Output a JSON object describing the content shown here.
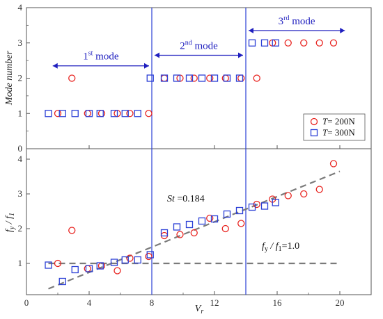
{
  "chart_data": [
    {
      "type": "scatter",
      "panel": "top",
      "xlabel": "",
      "ylabel": "Mode number",
      "xlim": [
        0,
        22
      ],
      "ylim": [
        0,
        4
      ],
      "yticks": [
        "0",
        "1",
        "2",
        "3",
        "4"
      ],
      "grid": false,
      "legend_placement": "lower-right",
      "series": [
        {
          "name": "T= 200N",
          "marker": "circle",
          "color": "#e8231f",
          "x": [
            2.0,
            2.9,
            3.9,
            4.8,
            5.8,
            6.6,
            7.8,
            8.8,
            9.8,
            10.7,
            11.7,
            12.7,
            13.7,
            14.7,
            15.7,
            16.7,
            17.7,
            18.7,
            19.6
          ],
          "y": [
            1,
            2,
            1,
            1,
            1,
            1,
            1,
            2,
            2,
            2,
            2,
            2,
            2,
            2,
            3,
            3,
            3,
            3,
            3
          ]
        },
        {
          "name": "T= 300N",
          "marker": "square",
          "color": "#2b3fd6",
          "x": [
            1.4,
            2.3,
            3.1,
            4.0,
            4.7,
            5.6,
            6.3,
            7.1,
            7.9,
            8.8,
            9.6,
            10.4,
            11.2,
            12.0,
            12.8,
            13.6,
            14.4,
            15.2,
            15.9
          ],
          "y": [
            1,
            1,
            1,
            1,
            1,
            1,
            1,
            1,
            2,
            2,
            2,
            2,
            2,
            2,
            2,
            2,
            3,
            3,
            3
          ]
        }
      ],
      "vlines": [
        8,
        14
      ],
      "annotations": [
        {
          "base": "1",
          "sup": "st",
          "tail": " mode",
          "x_from": 1.5,
          "x_to": 8.0,
          "y": 2.35
        },
        {
          "base": "2",
          "sup": "nd",
          "tail": " mode",
          "x_from": 8.0,
          "x_to": 14.0,
          "y": 2.65
        },
        {
          "base": "3",
          "sup": "rd",
          "tail": " mode",
          "x_from": 14.0,
          "x_to": 20.5,
          "y": 3.35
        }
      ]
    },
    {
      "type": "scatter",
      "panel": "bottom",
      "xlabel_base": "V",
      "xlabel_sub": "r",
      "ylabel_num": "f",
      "ylabel_num_sub": "y",
      "ylabel_den": "f",
      "ylabel_den_sub": "1",
      "xlim": [
        0,
        22
      ],
      "ylim": [
        0.1,
        4.3
      ],
      "xticks": [
        "0",
        "4",
        "8",
        "12",
        "16",
        "20"
      ],
      "xtick_values": [
        0,
        4,
        8,
        12,
        16,
        20
      ],
      "yticks": [
        "1",
        "2",
        "3",
        "4"
      ],
      "ytick_values": [
        1,
        2,
        3,
        4
      ],
      "grid": false,
      "series": [
        {
          "name": "T= 200N",
          "marker": "circle",
          "color": "#e8231f",
          "x": [
            2.0,
            2.9,
            3.9,
            4.8,
            5.8,
            6.6,
            7.8,
            8.8,
            9.8,
            10.7,
            11.7,
            12.7,
            13.7,
            14.7,
            15.7,
            16.7,
            17.7,
            18.7,
            19.6
          ],
          "y": [
            1.0,
            1.95,
            0.85,
            0.93,
            0.79,
            1.15,
            1.2,
            1.8,
            1.83,
            1.88,
            2.3,
            2.0,
            2.15,
            2.7,
            2.85,
            2.95,
            3.0,
            3.13,
            3.87
          ]
        },
        {
          "name": "T= 300N",
          "marker": "square",
          "color": "#2b3fd6",
          "x": [
            1.4,
            2.3,
            3.1,
            4.0,
            4.7,
            5.6,
            6.3,
            7.1,
            7.9,
            8.8,
            9.6,
            10.4,
            11.2,
            12.0,
            12.8,
            13.6,
            14.4,
            15.2,
            15.9
          ],
          "y": [
            0.95,
            0.48,
            0.82,
            0.85,
            0.93,
            1.03,
            1.1,
            1.1,
            1.25,
            1.88,
            2.05,
            2.12,
            2.22,
            2.28,
            2.42,
            2.52,
            2.62,
            2.65,
            2.75
          ]
        }
      ],
      "reference_lines": [
        {
          "kind": "fit",
          "x": [
            1.4,
            20.0
          ],
          "y": [
            0.27,
            3.65
          ],
          "color": "#7a7a7a"
        },
        {
          "kind": "horizontal",
          "x": [
            1.4,
            20.0
          ],
          "y": [
            1.0,
            1.0
          ],
          "color": "#7a7a7a"
        }
      ],
      "vlines": [
        8,
        14
      ],
      "labels": {
        "st_base": "St",
        "st_value": " =0.184",
        "ratio_num": "f",
        "ratio_num_sub": "y",
        "ratio_den": "f",
        "ratio_den_sub": "1",
        "ratio_value": "=1.0"
      }
    }
  ]
}
